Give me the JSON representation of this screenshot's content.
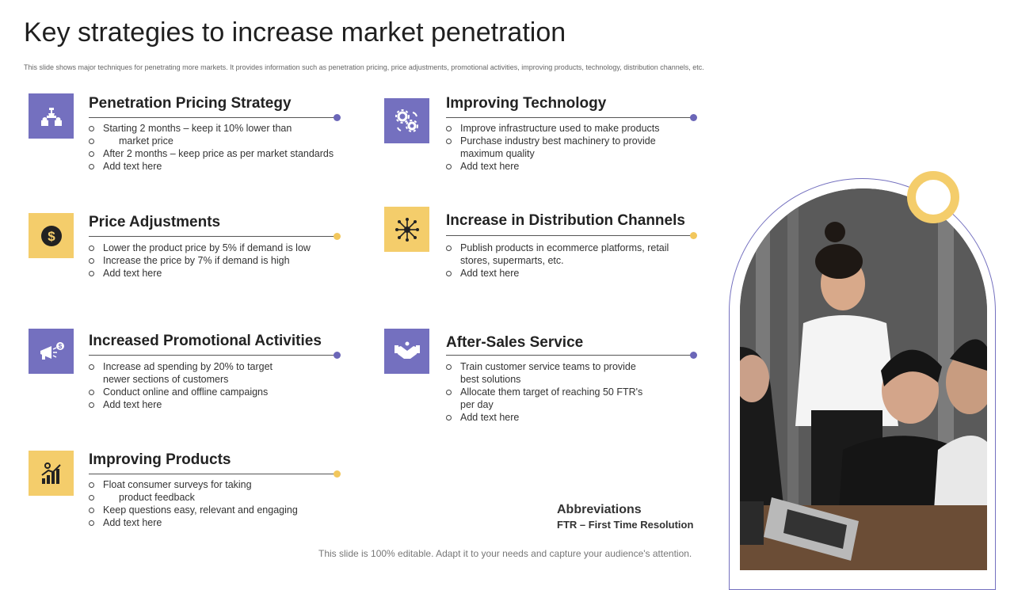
{
  "page": {
    "title": "Key strategies to increase market penetration",
    "subtitle": "This slide shows major techniques for penetrating more markets. It provides information such as penetration pricing, price adjustments, promotional activities, improving products, technology, distribution channels, etc.",
    "footer": "This slide is 100% editable. Adapt it to your needs and capture your audience's attention."
  },
  "colors": {
    "purple": "#7470bf",
    "gold": "#f4cd6b"
  },
  "sections": {
    "pricing": {
      "icon": "chess-pieces-icon",
      "title": "Penetration Pricing Strategy",
      "b1a": "Starting 2 months – keep it 10% lower than",
      "b1b": "market price",
      "b2": "After 2 months – keep price as per market standards",
      "b3": "Add text here"
    },
    "technology": {
      "icon": "gears-icon",
      "title": "Improving Technology",
      "b1": "Improve  infrastructure  used to make products",
      "b2a": "Purchase industry best machinery to provide",
      "b2b": "maximum quality",
      "b3": "Add text here"
    },
    "price_adj": {
      "icon": "dollar-coin-icon",
      "title": "Price Adjustments",
      "b1": "Lower the product price by 5% if demand is low",
      "b2": "Increase the price by 7% if demand is high",
      "b3": "Add text here"
    },
    "distribution": {
      "icon": "network-hub-icon",
      "title": "Increase in Distribution Channels",
      "b1a": "Publish products in ecommerce platforms, retail",
      "b1b": "stores, supermarts, etc.",
      "b2": "Add text here"
    },
    "promotional": {
      "icon": "megaphone-icon",
      "title": "Increased Promotional Activities",
      "b1a": "Increase ad spending by 20% to target",
      "b1b": "newer sections of customers",
      "b2": "Conduct online and offline campaigns",
      "b3": "Add text here"
    },
    "after_sales": {
      "icon": "handshake-icon",
      "title": "After-Sales Service",
      "b1a": "Train customer service teams to provide",
      "b1b": "best solutions",
      "b2a": "Allocate them target of reaching 50 FTR's",
      "b2b": "per day",
      "b3": "Add text here"
    },
    "products": {
      "icon": "growth-chart-icon",
      "title": "Improving Products",
      "b1a": "Float consumer surveys for taking",
      "b1b": "product feedback",
      "b2": "Keep questions easy, relevant  and engaging",
      "b3": "Add text here"
    }
  },
  "abbreviations": {
    "heading": "Abbreviations",
    "text": "FTR – First Time Resolution"
  }
}
